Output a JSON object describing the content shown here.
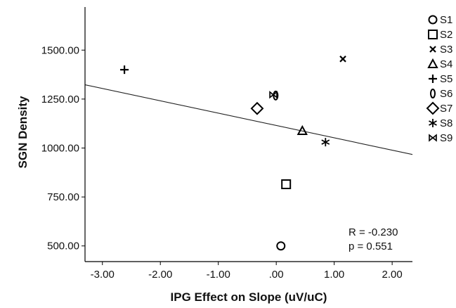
{
  "chart_data": {
    "type": "scatter",
    "xlabel": "IPG Effect on Slope (uV/uC)",
    "ylabel": "SGN Density",
    "xlim": [
      -3.3,
      2.35
    ],
    "ylim": [
      420,
      1720
    ],
    "x_ticks": [
      -3.0,
      -2.0,
      -1.0,
      0.0,
      1.0,
      2.0
    ],
    "x_tick_labels": [
      "-3.00",
      "-2.00",
      "-1.00",
      ".00",
      "1.00",
      "2.00"
    ],
    "y_ticks": [
      500,
      750,
      1000,
      1250,
      1500
    ],
    "y_tick_labels": [
      "500.00",
      "750.00",
      "1000.00",
      "1250.00",
      "1500.00"
    ],
    "grid": false,
    "legend_placement": "right",
    "series": [
      {
        "name": "S1",
        "marker": "circle",
        "x": 0.08,
        "y": 500
      },
      {
        "name": "S2",
        "marker": "square",
        "x": 0.17,
        "y": 815
      },
      {
        "name": "S3",
        "marker": "x",
        "x": 1.15,
        "y": 1455
      },
      {
        "name": "S4",
        "marker": "triangle",
        "x": 0.45,
        "y": 1088
      },
      {
        "name": "S5",
        "marker": "plus",
        "x": -2.62,
        "y": 1400
      },
      {
        "name": "S6",
        "marker": "ellipse",
        "x": -0.01,
        "y": 1268
      },
      {
        "name": "S7",
        "marker": "diamond",
        "x": -0.33,
        "y": 1202
      },
      {
        "name": "S8",
        "marker": "star",
        "x": 0.85,
        "y": 1030
      },
      {
        "name": "S9",
        "marker": "bowtie",
        "x": -0.05,
        "y": 1272
      }
    ],
    "fit_line": {
      "x": [
        -3.3,
        2.35
      ],
      "y": [
        1323,
        967
      ]
    },
    "annotations": [
      "R = -0.230",
      "p = 0.551"
    ]
  }
}
